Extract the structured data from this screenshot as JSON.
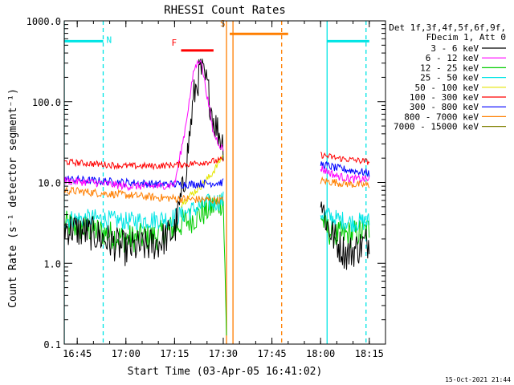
{
  "chart_data": {
    "type": "line",
    "title": "RHESSI Count Rates",
    "xlabel": "Start Time (03-Apr-05 16:41:02)",
    "ylabel": "Count Rate (s⁻¹ detector segment⁻¹)",
    "y_scale": "log",
    "ylim": [
      0.1,
      1000.0
    ],
    "xlim": [
      "16:41",
      "18:20"
    ],
    "x_ticks": [
      "16:45",
      "17:00",
      "17:15",
      "17:30",
      "17:45",
      "18:00",
      "18:15"
    ],
    "y_ticks": [
      "0.1",
      "1.0",
      "10.0",
      "100.0",
      "1000.0"
    ],
    "legend_header": [
      "Det 1f,3f,4f,5f,6f,9f,",
      "FDecim 1, Att 0"
    ],
    "legend_position": "right",
    "footer_stamp": "15-Oct-2021 21:44",
    "flags": [
      {
        "label": "N",
        "color": "#00e5e5",
        "intervals": [
          [
            "16:41",
            "16:53"
          ],
          [
            "18:02",
            "18:15"
          ]
        ],
        "level": 560
      },
      {
        "label": "F",
        "color": "#ff0000",
        "intervals": [
          [
            "17:17",
            "17:27"
          ]
        ],
        "level": 430
      },
      {
        "label": "S",
        "color": "#ff7f00",
        "intervals": [
          [
            "17:32",
            "17:50"
          ]
        ],
        "level": 690
      }
    ],
    "boundaries": [
      {
        "time": "16:41",
        "style": "solid",
        "color": "#00e5e5"
      },
      {
        "time": "16:53",
        "style": "dashed",
        "color": "#00e5e5"
      },
      {
        "time": "17:31",
        "style": "solid",
        "color": "#ff7f00"
      },
      {
        "time": "17:33",
        "style": "solid",
        "color": "#ff7f00"
      },
      {
        "time": "17:48",
        "style": "dashed",
        "color": "#ff7f00"
      },
      {
        "time": "18:02",
        "style": "solid",
        "color": "#00e5e5"
      },
      {
        "time": "18:14",
        "style": "dashed",
        "color": "#00e5e5"
      }
    ],
    "series": [
      {
        "name": "3 - 6 keV",
        "color": "#000000",
        "noise": 0.22,
        "points": [
          [
            "16:41",
            2.8
          ],
          [
            "16:50",
            2.3
          ],
          [
            "17:00",
            1.5
          ],
          [
            "17:05",
            1.6
          ],
          [
            "17:10",
            1.8
          ],
          [
            "17:15",
            2.5
          ],
          [
            "17:18",
            10
          ],
          [
            "17:21",
            120
          ],
          [
            "17:23",
            250
          ],
          [
            "17:25",
            160
          ],
          [
            "17:27",
            60
          ],
          [
            "17:30",
            30
          ],
          [
            "18:00",
            6.5
          ],
          [
            "18:02",
            3.0
          ],
          [
            "18:05",
            1.8
          ],
          [
            "18:08",
            1.3
          ],
          [
            "18:12",
            1.6
          ],
          [
            "18:15",
            1.9
          ]
        ]
      },
      {
        "name": "6 - 12 keV",
        "color": "#ff00ff",
        "noise": 0.05,
        "points": [
          [
            "16:41",
            10.5
          ],
          [
            "16:50",
            10
          ],
          [
            "17:00",
            9
          ],
          [
            "17:10",
            9
          ],
          [
            "17:15",
            9.5
          ],
          [
            "17:18",
            40
          ],
          [
            "17:21",
            250
          ],
          [
            "17:23",
            350
          ],
          [
            "17:25",
            120
          ],
          [
            "17:27",
            40
          ],
          [
            "17:30",
            25
          ],
          [
            "18:00",
            15
          ],
          [
            "18:05",
            12
          ],
          [
            "18:10",
            11
          ],
          [
            "18:15",
            11
          ]
        ]
      },
      {
        "name": "12 - 25 keV",
        "color": "#00cc00",
        "noise": 0.18,
        "points": [
          [
            "16:41",
            3.0
          ],
          [
            "16:50",
            2.6
          ],
          [
            "17:00",
            2.0
          ],
          [
            "17:10",
            2.2
          ],
          [
            "17:15",
            2.8
          ],
          [
            "17:20",
            3.5
          ],
          [
            "17:25",
            4.5
          ],
          [
            "17:30",
            6.0
          ],
          [
            "17:31",
            0.12
          ],
          [
            "18:00",
            4.0
          ],
          [
            "18:02",
            2.6
          ],
          [
            "18:05",
            2.2
          ],
          [
            "18:10",
            2.3
          ],
          [
            "18:15",
            2.6
          ]
        ]
      },
      {
        "name": "25 - 50 keV",
        "color": "#00e5e5",
        "noise": 0.12,
        "points": [
          [
            "16:41",
            3.5
          ],
          [
            "16:50",
            3.6
          ],
          [
            "17:00",
            3.3
          ],
          [
            "17:10",
            3.5
          ],
          [
            "17:15",
            3.7
          ],
          [
            "17:20",
            4.5
          ],
          [
            "17:25",
            5.5
          ],
          [
            "17:30",
            6.0
          ],
          [
            "18:00",
            4.2
          ],
          [
            "18:05",
            3.5
          ],
          [
            "18:10",
            3.2
          ],
          [
            "18:15",
            3.3
          ]
        ]
      },
      {
        "name": "50 - 100 keV",
        "color": "#e5e500",
        "noise": 0.05,
        "points": [
          [
            "17:17",
            5.5
          ],
          [
            "17:20",
            7
          ],
          [
            "17:23",
            9
          ],
          [
            "17:26",
            12
          ],
          [
            "17:28",
            16
          ],
          [
            "17:30",
            22
          ]
        ]
      },
      {
        "name": "100 - 300 keV",
        "color": "#ff0000",
        "noise": 0.04,
        "points": [
          [
            "16:41",
            18
          ],
          [
            "16:50",
            17
          ],
          [
            "17:00",
            16
          ],
          [
            "17:10",
            16
          ],
          [
            "17:20",
            17
          ],
          [
            "17:30",
            19
          ],
          [
            "18:00",
            22
          ],
          [
            "18:05",
            20
          ],
          [
            "18:10",
            19
          ],
          [
            "18:15",
            18
          ]
        ]
      },
      {
        "name": "300 - 800 keV",
        "color": "#0000ff",
        "noise": 0.05,
        "points": [
          [
            "16:41",
            11
          ],
          [
            "16:50",
            10.5
          ],
          [
            "17:00",
            10
          ],
          [
            "17:10",
            9.5
          ],
          [
            "17:20",
            9.5
          ],
          [
            "17:30",
            10
          ],
          [
            "18:00",
            17
          ],
          [
            "18:05",
            15
          ],
          [
            "18:10",
            14
          ],
          [
            "18:15",
            13
          ]
        ]
      },
      {
        "name": "800 - 7000 keV",
        "color": "#ff7f00",
        "noise": 0.05,
        "points": [
          [
            "16:41",
            8
          ],
          [
            "16:50",
            7.5
          ],
          [
            "17:00",
            7
          ],
          [
            "17:10",
            6.5
          ],
          [
            "17:20",
            6.2
          ],
          [
            "17:30",
            6.0
          ],
          [
            "18:00",
            10.5
          ],
          [
            "18:05",
            10
          ],
          [
            "18:10",
            9.5
          ],
          [
            "18:15",
            9.2
          ]
        ]
      },
      {
        "name": "7000 - 15000 keV",
        "color": "#808000",
        "noise": 0,
        "points": []
      }
    ]
  }
}
